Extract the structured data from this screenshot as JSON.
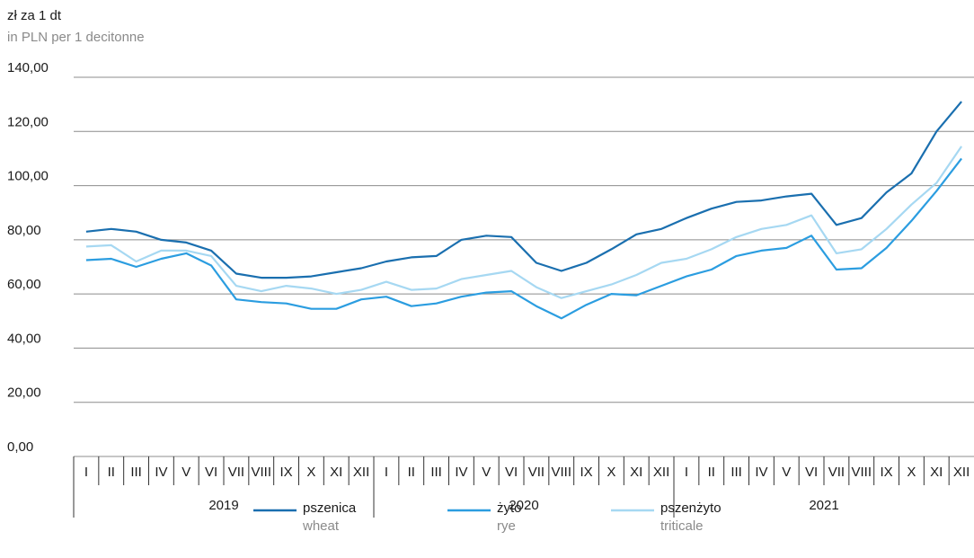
{
  "chart_data": {
    "type": "line",
    "y_label": "zł za 1 dt",
    "y_label_en": "in PLN per 1 decitonne",
    "categories": [
      "I",
      "II",
      "III",
      "IV",
      "V",
      "VI",
      "VII",
      "VIII",
      "IX",
      "X",
      "XI",
      "XII",
      "I",
      "II",
      "III",
      "IV",
      "V",
      "VI",
      "VII",
      "VIII",
      "IX",
      "X",
      "XI",
      "XII",
      "I",
      "II",
      "III",
      "IV",
      "V",
      "VI",
      "VII",
      "VIII",
      "IX",
      "X",
      "XI",
      "XII"
    ],
    "groups": [
      "2019",
      "2020",
      "2021"
    ],
    "ylim": [
      0,
      140
    ],
    "yticks": [
      {
        "value": 0,
        "label": "0,00"
      },
      {
        "value": 20,
        "label": "20,00"
      },
      {
        "value": 40,
        "label": "40,00"
      },
      {
        "value": 60,
        "label": "60,00"
      },
      {
        "value": 80,
        "label": "80,00"
      },
      {
        "value": 100,
        "label": "100,00"
      },
      {
        "value": 120,
        "label": "120,00"
      },
      {
        "value": 140,
        "label": "140,00"
      }
    ],
    "grid": true,
    "series": [
      {
        "name": "pszenica",
        "name_en": "wheat",
        "color": "#1a6faf",
        "values": [
          83,
          84,
          83,
          80,
          79,
          76,
          67.5,
          66,
          66,
          66.5,
          68,
          69.5,
          72,
          73.5,
          74,
          80,
          81.5,
          81,
          71.5,
          68.5,
          71.5,
          76.5,
          82,
          84,
          88,
          91.5,
          94,
          94.5,
          96,
          97,
          85.5,
          88,
          97.5,
          104.5,
          120,
          131
        ]
      },
      {
        "name": "żyto",
        "name_en": "rye",
        "color": "#2b9de0",
        "values": [
          72.5,
          73,
          70,
          73,
          75,
          70.5,
          58,
          57,
          56.5,
          54.5,
          54.5,
          58,
          59,
          55.5,
          56.5,
          59,
          60.5,
          61,
          55.5,
          51,
          56,
          60,
          59.5,
          63,
          66.5,
          69,
          74,
          76,
          77,
          81.5,
          69,
          69.5,
          77,
          87,
          98,
          110
        ]
      },
      {
        "name": "pszenżyto",
        "name_en": "triticale",
        "color": "#a6d8f2",
        "values": [
          77.5,
          78,
          72,
          76,
          76,
          74,
          63,
          61,
          63,
          62,
          60,
          61.5,
          64.5,
          61.5,
          62,
          65.5,
          67,
          68.5,
          62.5,
          58.5,
          61,
          63.5,
          67,
          71.5,
          73,
          76.5,
          81,
          84,
          85.5,
          89,
          75,
          76.5,
          84,
          93,
          101,
          114.5
        ]
      }
    ]
  }
}
